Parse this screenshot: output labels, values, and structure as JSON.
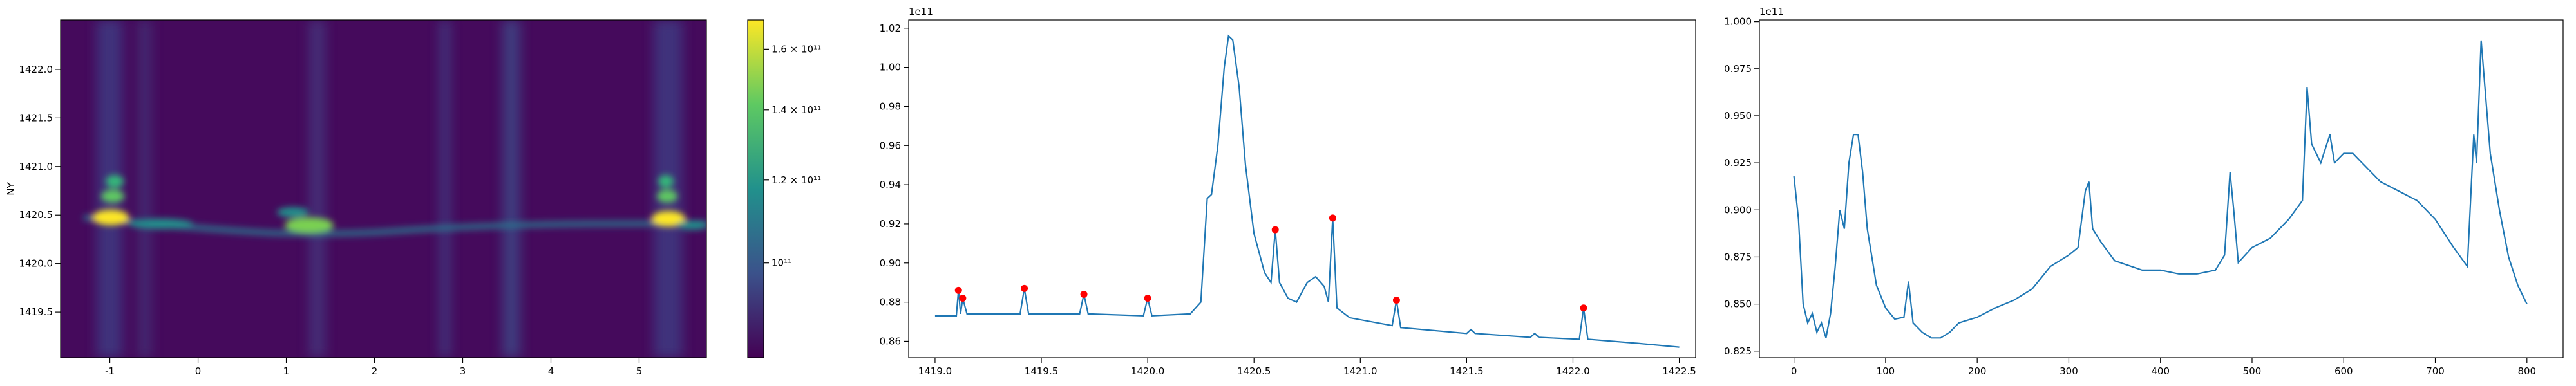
{
  "chart_data": [
    {
      "type": "heatmap",
      "ylabel": "NY",
      "xlim": [
        -1.559,
        5.763
      ],
      "xticks": [
        -1,
        0,
        1,
        2,
        3,
        4,
        5
      ],
      "ylim": [
        1419.03,
        1422.51
      ],
      "yticks": [
        1419.5,
        {
          "value": 1420,
          "label": "1420.0"
        },
        1420.5,
        {
          "value": 1421,
          "label": "1421.0"
        },
        1421.5,
        {
          "value": 1422,
          "label": "1422.0"
        }
      ],
      "colorbar": {
        "log": true,
        "lim": [
          81200000000,
          170600000000
        ],
        "colors": [
          "#440154",
          "#3b528b",
          "#21918c",
          "#5ec962",
          "#fde725"
        ],
        "ticks": [
          {
            "value": 100000000000,
            "label": "10¹¹"
          },
          {
            "value": 120000000000,
            "label": "1.2 × 10¹¹"
          },
          {
            "value": 140000000000,
            "label": "1.4 × 10¹¹"
          },
          {
            "value": 160000000000,
            "label": "1.6 × 10¹¹"
          }
        ]
      }
    },
    {
      "type": "line",
      "offset_label": "1e11",
      "color": "#1f77b4",
      "xlim": [
        1418.876,
        1422.577
      ],
      "xticks": [
        {
          "value": 1419,
          "label": "1419.0"
        },
        1419.5,
        {
          "value": 1420,
          "label": "1420.0"
        },
        1420.5,
        {
          "value": 1421,
          "label": "1421.0"
        },
        1421.5,
        {
          "value": 1422,
          "label": "1422.0"
        },
        1422.5
      ],
      "ylim": [
        0.8516,
        1.0242
      ],
      "yticks": [
        0.86,
        0.88,
        {
          "value": 0.9,
          "label": "0.90"
        },
        0.92,
        0.94,
        0.96,
        0.98,
        {
          "value": 1,
          "label": "1.00"
        },
        1.02
      ],
      "x": [
        1419.0,
        1419.1,
        1419.11,
        1419.12,
        1419.13,
        1419.15,
        1419.4,
        1419.42,
        1419.44,
        1419.68,
        1419.7,
        1419.72,
        1419.98,
        1420.0,
        1420.02,
        1420.2,
        1420.25,
        1420.28,
        1420.3,
        1420.33,
        1420.36,
        1420.38,
        1420.4,
        1420.43,
        1420.46,
        1420.5,
        1420.55,
        1420.58,
        1420.6,
        1420.62,
        1420.66,
        1420.7,
        1420.75,
        1420.79,
        1420.83,
        1420.85,
        1420.87,
        1420.89,
        1420.95,
        1421.1,
        1421.15,
        1421.17,
        1421.19,
        1421.5,
        1421.52,
        1421.54,
        1421.8,
        1421.82,
        1421.84,
        1422.03,
        1422.05,
        1422.07,
        1422.3,
        1422.5
      ],
      "values": [
        0.873,
        0.873,
        0.886,
        0.874,
        0.882,
        0.874,
        0.874,
        0.887,
        0.874,
        0.874,
        0.884,
        0.874,
        0.873,
        0.882,
        0.873,
        0.874,
        0.88,
        0.933,
        0.935,
        0.96,
        1.0,
        1.016,
        1.014,
        0.99,
        0.95,
        0.915,
        0.895,
        0.89,
        0.917,
        0.89,
        0.882,
        0.88,
        0.89,
        0.893,
        0.888,
        0.88,
        0.923,
        0.877,
        0.872,
        0.869,
        0.868,
        0.881,
        0.867,
        0.864,
        0.866,
        0.864,
        0.862,
        0.864,
        0.862,
        0.861,
        0.877,
        0.861,
        0.859,
        0.857
      ],
      "peaks": {
        "color": "#ff0000",
        "x": [
          1419.11,
          1419.13,
          1419.42,
          1419.7,
          1420.0,
          1420.6,
          1420.87,
          1421.17,
          1422.05
        ],
        "values": [
          0.886,
          0.882,
          0.887,
          0.884,
          0.882,
          0.917,
          0.923,
          0.881,
          0.877
        ]
      }
    },
    {
      "type": "line",
      "offset_label": "1e11",
      "color": "#1f77b4",
      "xlim": [
        -37.7,
        839.5
      ],
      "xticks": [
        0,
        100,
        200,
        300,
        400,
        500,
        600,
        700,
        800
      ],
      "ylim": [
        0.8215,
        1.0009
      ],
      "yticks": [
        0.825,
        {
          "value": 0.85,
          "label": "0.850"
        },
        0.875,
        {
          "value": 0.9,
          "label": "0.900"
        },
        0.925,
        {
          "value": 0.95,
          "label": "0.950"
        },
        0.975,
        {
          "value": 1,
          "label": "1.000"
        }
      ],
      "x": [
        0,
        5,
        10,
        15,
        20,
        25,
        30,
        35,
        40,
        45,
        50,
        55,
        60,
        65,
        70,
        75,
        80,
        90,
        100,
        110,
        120,
        125,
        130,
        140,
        150,
        160,
        170,
        180,
        200,
        220,
        240,
        260,
        280,
        300,
        310,
        318,
        322,
        326,
        335,
        350,
        380,
        400,
        420,
        440,
        460,
        470,
        476,
        480,
        485,
        500,
        520,
        540,
        555,
        560,
        565,
        575,
        585,
        590,
        600,
        610,
        620,
        640,
        660,
        680,
        700,
        720,
        735,
        742,
        745,
        750,
        755,
        760,
        770,
        780,
        790,
        800
      ],
      "values": [
        0.918,
        0.895,
        0.85,
        0.84,
        0.845,
        0.835,
        0.84,
        0.832,
        0.845,
        0.87,
        0.9,
        0.89,
        0.925,
        0.94,
        0.94,
        0.92,
        0.89,
        0.86,
        0.848,
        0.842,
        0.843,
        0.862,
        0.84,
        0.835,
        0.832,
        0.832,
        0.835,
        0.84,
        0.843,
        0.848,
        0.852,
        0.858,
        0.87,
        0.876,
        0.88,
        0.91,
        0.915,
        0.89,
        0.883,
        0.873,
        0.868,
        0.868,
        0.866,
        0.866,
        0.868,
        0.876,
        0.92,
        0.9,
        0.872,
        0.88,
        0.885,
        0.895,
        0.905,
        0.965,
        0.935,
        0.925,
        0.94,
        0.925,
        0.93,
        0.93,
        0.925,
        0.915,
        0.91,
        0.905,
        0.895,
        0.88,
        0.87,
        0.94,
        0.925,
        0.99,
        0.96,
        0.93,
        0.9,
        0.875,
        0.86,
        0.85
      ]
    }
  ]
}
